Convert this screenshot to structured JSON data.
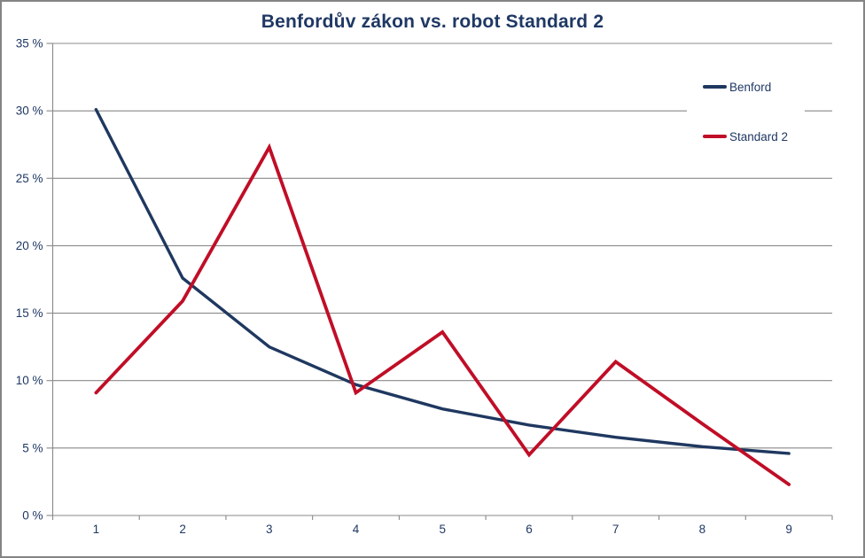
{
  "chart_data": {
    "type": "line",
    "title": "Benfordův zákon vs. robot Standard 2",
    "categories": [
      "1",
      "2",
      "3",
      "4",
      "5",
      "6",
      "7",
      "8",
      "9"
    ],
    "series": [
      {
        "name": "Benford",
        "color": "#1F3860",
        "values": [
          30.1,
          17.6,
          12.5,
          9.7,
          7.9,
          6.7,
          5.8,
          5.1,
          4.6
        ]
      },
      {
        "name": "Standard 2",
        "color": "#C00E27",
        "values": [
          9.1,
          15.9,
          27.3,
          9.1,
          13.6,
          4.5,
          11.4,
          6.8,
          2.3
        ]
      }
    ],
    "xlabel": "",
    "ylabel": "",
    "ylim": [
      0,
      35
    ],
    "ytick_step": 5,
    "ytick_labels": [
      "0 %",
      "5 %",
      "10 %",
      "15 %",
      "20 %",
      "25 %",
      "30 %",
      "35 %"
    ],
    "grid": true,
    "legend_position": "top-right-overlay",
    "colors": {
      "text": "#1F3864",
      "grid": "#898989",
      "axis": "#898989",
      "frame_border": "#848484"
    }
  }
}
